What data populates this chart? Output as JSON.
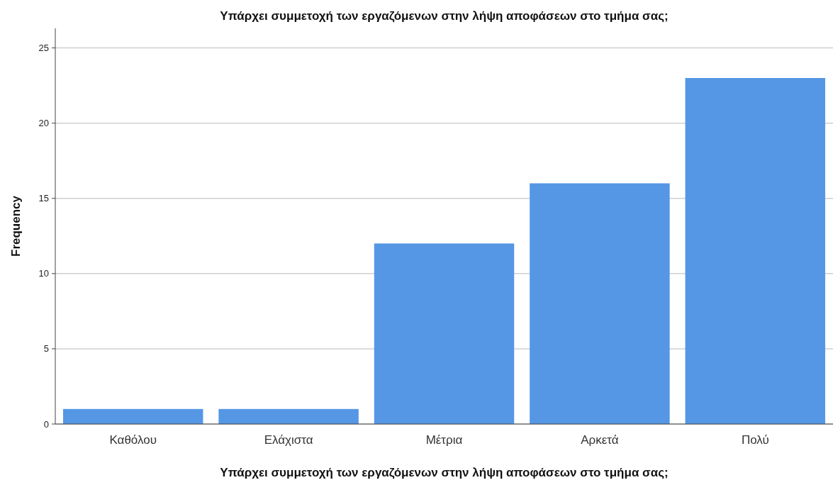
{
  "chart_data": {
    "type": "bar",
    "title": "Υπάρχει συμμετοχή των εργαζόμενων στην λήψη αποφάσεων στο τμήμα σας;",
    "xlabel": "Υπάρχει συμμετοχή των εργαζόμενων στην λήψη αποφάσεων στο τμήμα σας;",
    "ylabel": "Frequency",
    "categories": [
      "Καθόλου",
      "Ελάχιστα",
      "Μέτρια",
      "Αρκετά",
      "Πολύ"
    ],
    "values": [
      1,
      1,
      12,
      16,
      23
    ],
    "color": "#5597e5",
    "ylim": [
      0,
      26.3
    ],
    "yticks": [
      0,
      5,
      10,
      15,
      20,
      25
    ],
    "grid": "y"
  }
}
